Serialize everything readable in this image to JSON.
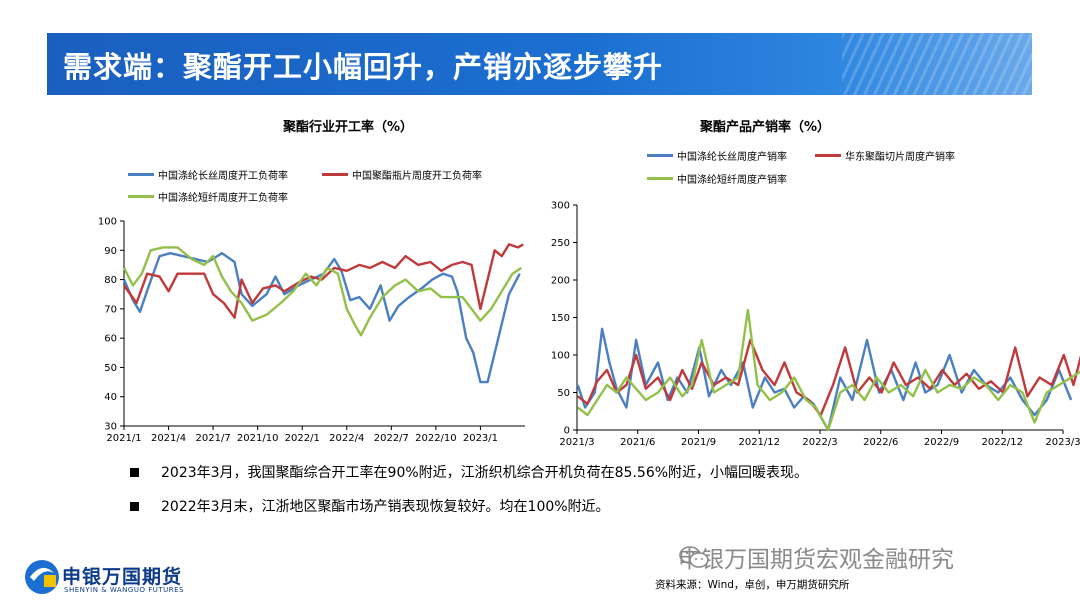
{
  "header": {
    "title": "需求端：聚酯开工小幅回升，产销亦逐步攀升"
  },
  "colors": {
    "blue": "#4a7fc1",
    "red": "#c0393b",
    "green": "#92c04a",
    "banner": "#1b6fd1",
    "text": "#000000"
  },
  "chart_data": [
    {
      "type": "line",
      "title": "聚酯行业开工率（%）",
      "xlabel": "",
      "ylabel": "",
      "ylim": [
        30,
        100
      ],
      "yticks": [
        "100",
        "90",
        "80",
        "70",
        "60",
        "50",
        "40",
        "30"
      ],
      "xticks": [
        "2021/1",
        "2021/4",
        "2021/7",
        "2021/10",
        "2022/1",
        "2022/4",
        "2022/7",
        "2022/10",
        "2023/1"
      ],
      "xrange": [
        "2021-01",
        "2023-04"
      ],
      "grid": false,
      "legend_position": "top",
      "series": [
        {
          "name": "中国涤纶长丝周度开工负荷率",
          "color": "#4a7fc1",
          "values": [
            [
              2021.0,
              80
            ],
            [
              2021.05,
              73
            ],
            [
              2021.09,
              69
            ],
            [
              2021.14,
              78
            ],
            [
              2021.2,
              88
            ],
            [
              2021.26,
              89
            ],
            [
              2021.33,
              88
            ],
            [
              2021.4,
              87
            ],
            [
              2021.47,
              86
            ],
            [
              2021.55,
              89
            ],
            [
              2021.62,
              86
            ],
            [
              2021.66,
              75
            ],
            [
              2021.72,
              71
            ],
            [
              2021.8,
              75
            ],
            [
              2021.85,
              81
            ],
            [
              2021.9,
              75
            ],
            [
              2021.98,
              78
            ],
            [
              2022.05,
              80
            ],
            [
              2022.12,
              82
            ],
            [
              2022.18,
              87
            ],
            [
              2022.22,
              83
            ],
            [
              2022.27,
              73
            ],
            [
              2022.32,
              74
            ],
            [
              2022.38,
              70
            ],
            [
              2022.44,
              78
            ],
            [
              2022.49,
              66
            ],
            [
              2022.54,
              71
            ],
            [
              2022.6,
              74
            ],
            [
              2022.67,
              77
            ],
            [
              2022.73,
              80
            ],
            [
              2022.79,
              82
            ],
            [
              2022.84,
              81
            ],
            [
              2022.87,
              76
            ],
            [
              2022.92,
              60
            ],
            [
              2022.96,
              55
            ],
            [
              2023.0,
              45
            ],
            [
              2023.04,
              45
            ],
            [
              2023.1,
              60
            ],
            [
              2023.16,
              75
            ],
            [
              2023.22,
              82
            ]
          ]
        },
        {
          "name": "中国聚酯瓶片周度开工负荷率",
          "color": "#c0393b",
          "values": [
            [
              2021.0,
              78
            ],
            [
              2021.07,
              72
            ],
            [
              2021.13,
              82
            ],
            [
              2021.2,
              81
            ],
            [
              2021.25,
              76
            ],
            [
              2021.3,
              82
            ],
            [
              2021.38,
              82
            ],
            [
              2021.45,
              82
            ],
            [
              2021.5,
              75
            ],
            [
              2021.56,
              72
            ],
            [
              2021.62,
              67
            ],
            [
              2021.66,
              80
            ],
            [
              2021.72,
              72
            ],
            [
              2021.78,
              77
            ],
            [
              2021.85,
              78
            ],
            [
              2021.9,
              76
            ],
            [
              2021.98,
              79
            ],
            [
              2022.05,
              81
            ],
            [
              2022.11,
              80
            ],
            [
              2022.18,
              84
            ],
            [
              2022.25,
              83
            ],
            [
              2022.32,
              85
            ],
            [
              2022.38,
              84
            ],
            [
              2022.45,
              86
            ],
            [
              2022.52,
              84
            ],
            [
              2022.58,
              88
            ],
            [
              2022.65,
              85
            ],
            [
              2022.72,
              86
            ],
            [
              2022.78,
              83
            ],
            [
              2022.84,
              85
            ],
            [
              2022.9,
              86
            ],
            [
              2022.95,
              85
            ],
            [
              2023.0,
              70
            ],
            [
              2023.04,
              80
            ],
            [
              2023.08,
              90
            ],
            [
              2023.12,
              88
            ],
            [
              2023.16,
              92
            ],
            [
              2023.21,
              91
            ],
            [
              2023.24,
              92
            ]
          ]
        },
        {
          "name": "中国涤纶短纤周度开工负荷率",
          "color": "#92c04a",
          "values": [
            [
              2021.0,
              84
            ],
            [
              2021.05,
              78
            ],
            [
              2021.1,
              82
            ],
            [
              2021.15,
              90
            ],
            [
              2021.22,
              91
            ],
            [
              2021.3,
              91
            ],
            [
              2021.38,
              87
            ],
            [
              2021.45,
              85
            ],
            [
              2021.5,
              88
            ],
            [
              2021.55,
              81
            ],
            [
              2021.6,
              76
            ],
            [
              2021.66,
              72
            ],
            [
              2021.72,
              66
            ],
            [
              2021.8,
              68
            ],
            [
              2021.88,
              72
            ],
            [
              2021.95,
              76
            ],
            [
              2022.02,
              82
            ],
            [
              2022.08,
              78
            ],
            [
              2022.14,
              84
            ],
            [
              2022.2,
              82
            ],
            [
              2022.25,
              70
            ],
            [
              2022.3,
              64
            ],
            [
              2022.33,
              61
            ],
            [
              2022.38,
              67
            ],
            [
              2022.45,
              74
            ],
            [
              2022.52,
              78
            ],
            [
              2022.58,
              80
            ],
            [
              2022.65,
              76
            ],
            [
              2022.72,
              77
            ],
            [
              2022.78,
              74
            ],
            [
              2022.84,
              74
            ],
            [
              2022.9,
              74
            ],
            [
              2022.95,
              70
            ],
            [
              2023.0,
              66
            ],
            [
              2023.06,
              70
            ],
            [
              2023.12,
              76
            ],
            [
              2023.18,
              82
            ],
            [
              2023.23,
              84
            ]
          ]
        }
      ]
    },
    {
      "type": "line",
      "title": "聚酯产品产销率（%）",
      "xlabel": "",
      "ylabel": "",
      "ylim": [
        0,
        300
      ],
      "yticks": [
        "300",
        "250",
        "200",
        "150",
        "100",
        "50",
        "0"
      ],
      "xticks": [
        "2021/3",
        "2021/6",
        "2021/9",
        "2021/12",
        "2022/3",
        "2022/6",
        "2022/9",
        "2022/12",
        "2023/3"
      ],
      "xrange": [
        "2021-03",
        "2023-03"
      ],
      "grid": false,
      "legend_position": "top",
      "series": [
        {
          "name": "中国涤纶长丝周度产销率",
          "color": "#4a7fc1",
          "values": [
            [
              2021.17,
              60
            ],
            [
              2021.2,
              30
            ],
            [
              2021.24,
              50
            ],
            [
              2021.27,
              135
            ],
            [
              2021.3,
              90
            ],
            [
              2021.33,
              55
            ],
            [
              2021.37,
              30
            ],
            [
              2021.41,
              120
            ],
            [
              2021.45,
              60
            ],
            [
              2021.5,
              90
            ],
            [
              2021.54,
              40
            ],
            [
              2021.58,
              70
            ],
            [
              2021.62,
              50
            ],
            [
              2021.67,
              110
            ],
            [
              2021.71,
              45
            ],
            [
              2021.76,
              80
            ],
            [
              2021.8,
              60
            ],
            [
              2021.85,
              90
            ],
            [
              2021.89,
              30
            ],
            [
              2021.94,
              70
            ],
            [
              2021.98,
              50
            ],
            [
              2022.02,
              55
            ],
            [
              2022.06,
              30
            ],
            [
              2022.1,
              45
            ],
            [
              2022.14,
              35
            ],
            [
              2022.2,
              0
            ],
            [
              2022.25,
              70
            ],
            [
              2022.3,
              40
            ],
            [
              2022.36,
              120
            ],
            [
              2022.41,
              50
            ],
            [
              2022.46,
              80
            ],
            [
              2022.51,
              40
            ],
            [
              2022.56,
              90
            ],
            [
              2022.6,
              50
            ],
            [
              2022.65,
              60
            ],
            [
              2022.7,
              100
            ],
            [
              2022.75,
              50
            ],
            [
              2022.8,
              80
            ],
            [
              2022.85,
              60
            ],
            [
              2022.9,
              50
            ],
            [
              2022.95,
              70
            ],
            [
              2023.0,
              40
            ],
            [
              2023.05,
              20
            ],
            [
              2023.1,
              40
            ],
            [
              2023.15,
              80
            ],
            [
              2023.2,
              40
            ]
          ]
        },
        {
          "name": "华东聚酯切片周度产销率",
          "color": "#c0393b",
          "values": [
            [
              2021.17,
              45
            ],
            [
              2021.21,
              35
            ],
            [
              2021.25,
              65
            ],
            [
              2021.29,
              80
            ],
            [
              2021.33,
              50
            ],
            [
              2021.37,
              60
            ],
            [
              2021.41,
              100
            ],
            [
              2021.45,
              55
            ],
            [
              2021.5,
              70
            ],
            [
              2021.55,
              40
            ],
            [
              2021.6,
              80
            ],
            [
              2021.64,
              55
            ],
            [
              2021.68,
              90
            ],
            [
              2021.73,
              60
            ],
            [
              2021.78,
              70
            ],
            [
              2021.83,
              60
            ],
            [
              2021.88,
              120
            ],
            [
              2021.93,
              80
            ],
            [
              2021.98,
              60
            ],
            [
              2022.02,
              90
            ],
            [
              2022.07,
              50
            ],
            [
              2022.12,
              40
            ],
            [
              2022.17,
              20
            ],
            [
              2022.22,
              60
            ],
            [
              2022.27,
              110
            ],
            [
              2022.32,
              50
            ],
            [
              2022.37,
              70
            ],
            [
              2022.42,
              50
            ],
            [
              2022.47,
              90
            ],
            [
              2022.52,
              60
            ],
            [
              2022.57,
              70
            ],
            [
              2022.62,
              55
            ],
            [
              2022.67,
              80
            ],
            [
              2022.72,
              60
            ],
            [
              2022.77,
              75
            ],
            [
              2022.82,
              55
            ],
            [
              2022.87,
              65
            ],
            [
              2022.92,
              50
            ],
            [
              2022.97,
              110
            ],
            [
              2023.02,
              45
            ],
            [
              2023.07,
              70
            ],
            [
              2023.12,
              60
            ],
            [
              2023.17,
              100
            ],
            [
              2023.21,
              60
            ],
            [
              2023.25,
              110
            ]
          ]
        },
        {
          "name": "中国涤纶短纤周度产销率",
          "color": "#92c04a",
          "values": [
            [
              2021.17,
              30
            ],
            [
              2021.21,
              20
            ],
            [
              2021.25,
              40
            ],
            [
              2021.29,
              60
            ],
            [
              2021.33,
              50
            ],
            [
              2021.37,
              70
            ],
            [
              2021.41,
              55
            ],
            [
              2021.45,
              40
            ],
            [
              2021.5,
              50
            ],
            [
              2021.55,
              70
            ],
            [
              2021.6,
              45
            ],
            [
              2021.64,
              60
            ],
            [
              2021.68,
              120
            ],
            [
              2021.73,
              50
            ],
            [
              2021.78,
              60
            ],
            [
              2021.83,
              70
            ],
            [
              2021.87,
              160
            ],
            [
              2021.91,
              60
            ],
            [
              2021.96,
              40
            ],
            [
              2022.01,
              50
            ],
            [
              2022.06,
              70
            ],
            [
              2022.11,
              40
            ],
            [
              2022.15,
              30
            ],
            [
              2022.2,
              0
            ],
            [
              2022.25,
              50
            ],
            [
              2022.3,
              60
            ],
            [
              2022.35,
              40
            ],
            [
              2022.4,
              70
            ],
            [
              2022.45,
              50
            ],
            [
              2022.5,
              60
            ],
            [
              2022.55,
              45
            ],
            [
              2022.6,
              80
            ],
            [
              2022.65,
              50
            ],
            [
              2022.7,
              60
            ],
            [
              2022.75,
              55
            ],
            [
              2022.8,
              70
            ],
            [
              2022.85,
              60
            ],
            [
              2022.9,
              40
            ],
            [
              2022.95,
              60
            ],
            [
              2023.0,
              50
            ],
            [
              2023.05,
              10
            ],
            [
              2023.1,
              50
            ],
            [
              2023.15,
              60
            ],
            [
              2023.2,
              70
            ],
            [
              2023.25,
              80
            ]
          ]
        }
      ]
    }
  ],
  "bullets": [
    "2023年3月，我国聚酯综合开工率在90%附近，江浙织机综合开机负荷在85.56%附近，小幅回暖表现。",
    "2022年3月末，江浙地区聚酯市场产销表现恢复较好。均在100%附近。"
  ],
  "logo": {
    "cn": "申银万国期货",
    "en": "SHENYIN & WANGUO FUTURES"
  },
  "watermark": "申银万国期货宏观金融研究",
  "source": "资料来源：Wind，卓创，申万期货研究所"
}
